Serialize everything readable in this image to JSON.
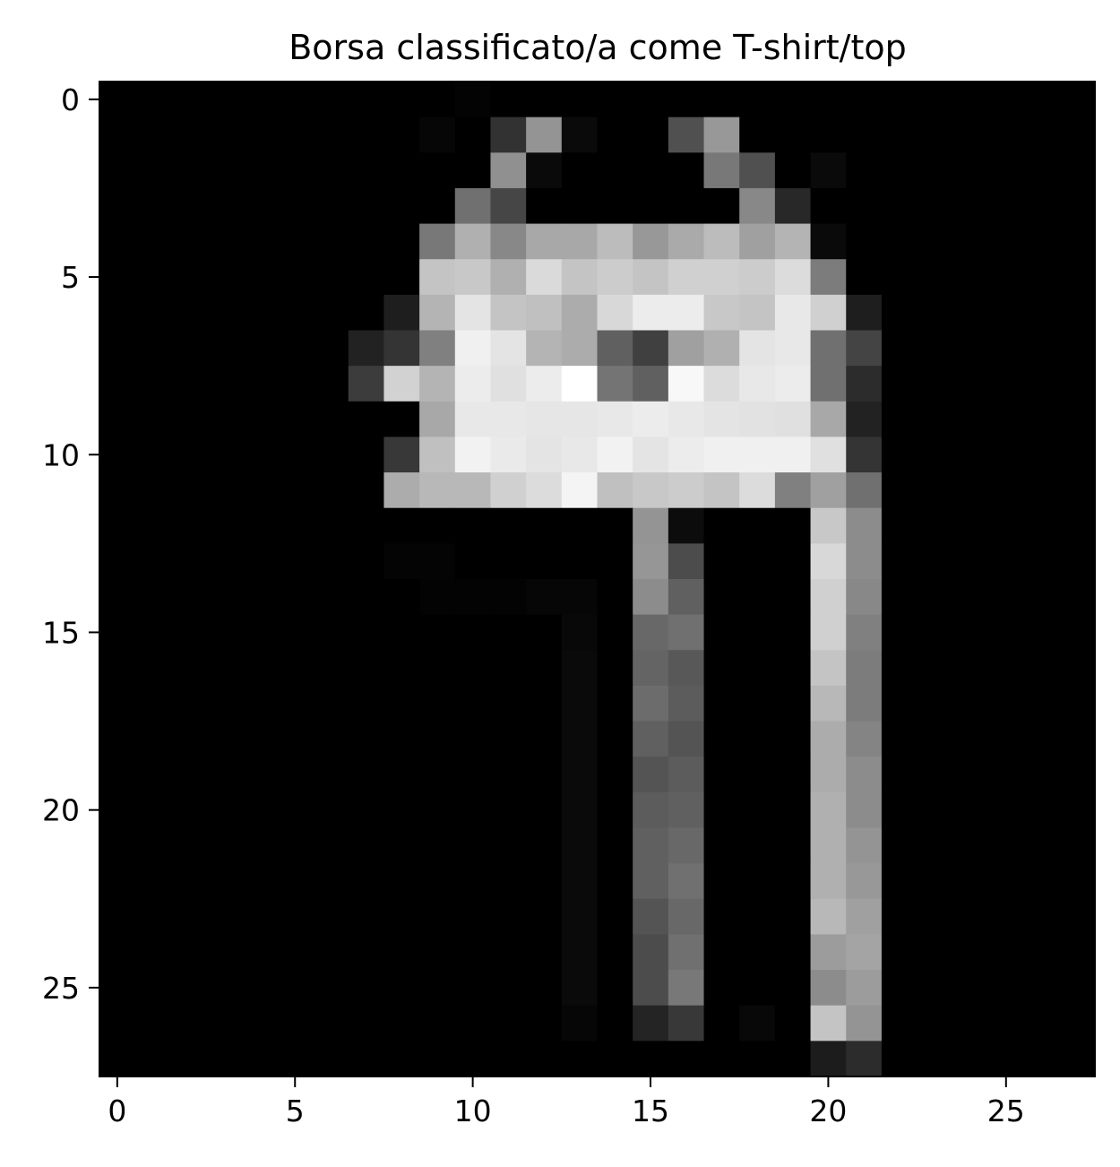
{
  "chart_data": {
    "type": "heatmap",
    "title": "Borsa classificato/a come T-shirt/top",
    "colormap": "gray",
    "value_range": [
      0,
      255
    ],
    "xlim": [
      -0.5,
      27.5
    ],
    "ylim": [
      27.5,
      -0.5
    ],
    "grid": false,
    "x_ticks": [
      0,
      5,
      10,
      15,
      20,
      25
    ],
    "y_ticks": [
      0,
      5,
      10,
      15,
      20,
      25
    ],
    "values": [
      [
        0,
        0,
        0,
        0,
        0,
        0,
        0,
        0,
        0,
        0,
        3,
        0,
        0,
        0,
        0,
        0,
        0,
        0,
        0,
        0,
        0,
        0,
        0,
        0,
        0,
        0,
        0,
        0
      ],
      [
        0,
        0,
        0,
        0,
        0,
        0,
        0,
        0,
        0,
        6,
        0,
        50,
        148,
        10,
        0,
        0,
        80,
        152,
        0,
        0,
        0,
        0,
        0,
        0,
        0,
        0,
        0,
        0
      ],
      [
        0,
        0,
        0,
        0,
        0,
        0,
        0,
        0,
        0,
        0,
        0,
        144,
        10,
        0,
        0,
        0,
        0,
        120,
        80,
        0,
        10,
        0,
        0,
        0,
        0,
        0,
        0,
        0
      ],
      [
        0,
        0,
        0,
        0,
        0,
        0,
        0,
        0,
        0,
        0,
        112,
        70,
        0,
        0,
        0,
        0,
        0,
        0,
        136,
        40,
        0,
        0,
        0,
        0,
        0,
        0,
        0,
        0
      ],
      [
        0,
        0,
        0,
        0,
        0,
        0,
        0,
        0,
        0,
        120,
        176,
        136,
        168,
        168,
        188,
        152,
        170,
        188,
        160,
        180,
        10,
        0,
        0,
        0,
        0,
        0,
        0,
        0
      ],
      [
        0,
        0,
        0,
        0,
        0,
        0,
        0,
        0,
        0,
        196,
        200,
        176,
        218,
        196,
        204,
        196,
        208,
        208,
        204,
        220,
        124,
        0,
        0,
        0,
        0,
        0,
        0,
        0
      ],
      [
        0,
        0,
        0,
        0,
        0,
        0,
        0,
        0,
        30,
        180,
        228,
        196,
        192,
        172,
        216,
        236,
        236,
        200,
        196,
        232,
        208,
        30,
        0,
        0,
        0,
        0,
        0,
        0
      ],
      [
        0,
        0,
        0,
        0,
        0,
        0,
        0,
        34,
        52,
        128,
        240,
        228,
        180,
        172,
        96,
        64,
        160,
        176,
        228,
        232,
        112,
        68,
        0,
        0,
        0,
        0,
        0,
        0
      ],
      [
        0,
        0,
        0,
        0,
        0,
        0,
        0,
        60,
        210,
        180,
        236,
        224,
        236,
        255,
        116,
        96,
        248,
        220,
        232,
        236,
        112,
        44,
        0,
        0,
        0,
        0,
        0,
        0
      ],
      [
        0,
        0,
        0,
        0,
        0,
        0,
        0,
        0,
        0,
        168,
        232,
        232,
        230,
        230,
        232,
        236,
        232,
        228,
        226,
        224,
        168,
        34,
        0,
        0,
        0,
        0,
        0,
        0
      ],
      [
        0,
        0,
        0,
        0,
        0,
        0,
        0,
        0,
        56,
        192,
        242,
        234,
        228,
        232,
        242,
        228,
        236,
        240,
        240,
        240,
        224,
        52,
        0,
        0,
        0,
        0,
        0,
        0
      ],
      [
        0,
        0,
        0,
        0,
        0,
        0,
        0,
        0,
        172,
        184,
        184,
        208,
        220,
        244,
        192,
        200,
        204,
        196,
        220,
        128,
        160,
        112,
        0,
        0,
        0,
        0,
        0,
        0
      ],
      [
        0,
        0,
        0,
        0,
        0,
        0,
        0,
        0,
        0,
        0,
        0,
        0,
        0,
        0,
        0,
        148,
        12,
        0,
        0,
        0,
        200,
        140,
        0,
        0,
        0,
        0,
        0,
        0
      ],
      [
        0,
        0,
        0,
        0,
        0,
        0,
        0,
        0,
        4,
        4,
        0,
        0,
        0,
        0,
        0,
        150,
        76,
        0,
        0,
        0,
        216,
        140,
        0,
        0,
        0,
        0,
        0,
        0
      ],
      [
        0,
        0,
        0,
        0,
        0,
        0,
        0,
        0,
        0,
        3,
        3,
        3,
        6,
        6,
        0,
        140,
        96,
        0,
        0,
        0,
        208,
        136,
        0,
        0,
        0,
        0,
        0,
        0
      ],
      [
        0,
        0,
        0,
        0,
        0,
        0,
        0,
        0,
        0,
        0,
        0,
        0,
        0,
        8,
        0,
        104,
        112,
        0,
        0,
        0,
        208,
        128,
        0,
        0,
        0,
        0,
        0,
        0
      ],
      [
        0,
        0,
        0,
        0,
        0,
        0,
        0,
        0,
        0,
        0,
        0,
        0,
        0,
        10,
        0,
        100,
        88,
        0,
        0,
        0,
        196,
        124,
        0,
        0,
        0,
        0,
        0,
        0
      ],
      [
        0,
        0,
        0,
        0,
        0,
        0,
        0,
        0,
        0,
        0,
        0,
        0,
        0,
        10,
        0,
        108,
        92,
        0,
        0,
        0,
        184,
        124,
        0,
        0,
        0,
        0,
        0,
        0
      ],
      [
        0,
        0,
        0,
        0,
        0,
        0,
        0,
        0,
        0,
        0,
        0,
        0,
        0,
        10,
        0,
        96,
        84,
        0,
        0,
        0,
        172,
        132,
        0,
        0,
        0,
        0,
        0,
        0
      ],
      [
        0,
        0,
        0,
        0,
        0,
        0,
        0,
        0,
        0,
        0,
        0,
        0,
        0,
        10,
        0,
        84,
        92,
        0,
        0,
        0,
        172,
        140,
        0,
        0,
        0,
        0,
        0,
        0
      ],
      [
        0,
        0,
        0,
        0,
        0,
        0,
        0,
        0,
        0,
        0,
        0,
        0,
        0,
        10,
        0,
        92,
        96,
        0,
        0,
        0,
        176,
        140,
        0,
        0,
        0,
        0,
        0,
        0
      ],
      [
        0,
        0,
        0,
        0,
        0,
        0,
        0,
        0,
        0,
        0,
        0,
        0,
        0,
        10,
        0,
        96,
        104,
        0,
        0,
        0,
        176,
        148,
        0,
        0,
        0,
        0,
        0,
        0
      ],
      [
        0,
        0,
        0,
        0,
        0,
        0,
        0,
        0,
        0,
        0,
        0,
        0,
        0,
        10,
        0,
        96,
        112,
        0,
        0,
        0,
        176,
        152,
        0,
        0,
        0,
        0,
        0,
        0
      ],
      [
        0,
        0,
        0,
        0,
        0,
        0,
        0,
        0,
        0,
        0,
        0,
        0,
        0,
        10,
        0,
        84,
        104,
        0,
        0,
        0,
        184,
        160,
        0,
        0,
        0,
        0,
        0,
        0
      ],
      [
        0,
        0,
        0,
        0,
        0,
        0,
        0,
        0,
        0,
        0,
        0,
        0,
        0,
        10,
        0,
        76,
        112,
        0,
        0,
        0,
        156,
        164,
        0,
        0,
        0,
        0,
        0,
        0
      ],
      [
        0,
        0,
        0,
        0,
        0,
        0,
        0,
        0,
        0,
        0,
        0,
        0,
        0,
        10,
        0,
        76,
        120,
        0,
        0,
        0,
        140,
        156,
        0,
        0,
        0,
        0,
        0,
        0
      ],
      [
        0,
        0,
        0,
        0,
        0,
        0,
        0,
        0,
        0,
        0,
        0,
        0,
        0,
        6,
        0,
        36,
        56,
        0,
        8,
        0,
        196,
        148,
        0,
        0,
        0,
        0,
        0,
        0
      ],
      [
        0,
        0,
        0,
        0,
        0,
        0,
        0,
        0,
        0,
        0,
        0,
        0,
        0,
        0,
        0,
        0,
        0,
        0,
        0,
        0,
        28,
        44,
        0,
        0,
        0,
        0,
        0,
        0
      ]
    ]
  }
}
